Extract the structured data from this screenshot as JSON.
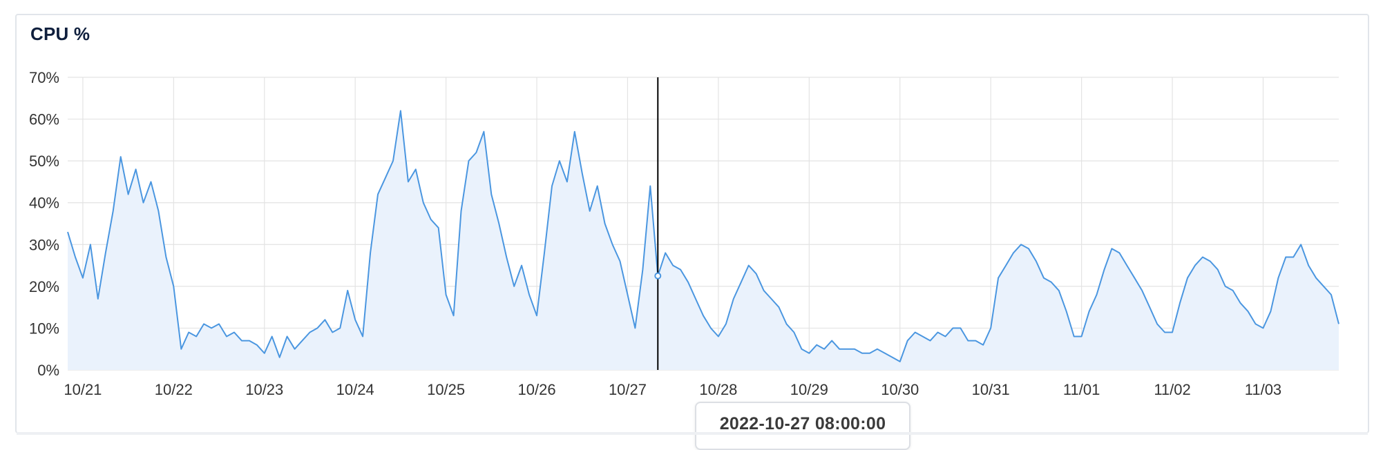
{
  "panel": {
    "title": "CPU %"
  },
  "tooltip": {
    "timestamp": "2022-10-27 08:00:00"
  },
  "colors": {
    "line": "#4a96e0",
    "fill": "#eaf2fc",
    "grid": "#e3e3e3",
    "crosshair": "#000000",
    "tick_text": "#333333"
  },
  "chart_data": {
    "type": "area",
    "title": "CPU %",
    "xlabel": "",
    "ylabel": "",
    "ylim": [
      0,
      70
    ],
    "y_ticks": [
      0,
      10,
      20,
      30,
      40,
      50,
      60,
      70
    ],
    "y_tick_suffix": "%",
    "x_range": [
      "2022-10-20 20:00",
      "2022-11-03 20:00"
    ],
    "x_tick_labels": [
      "10/21",
      "10/22",
      "10/23",
      "10/24",
      "10/25",
      "10/26",
      "10/27",
      "10/28",
      "10/29",
      "10/30",
      "10/31",
      "11/01",
      "11/02",
      "11/03"
    ],
    "grid": true,
    "legend": "none",
    "cursor": {
      "x": "2022-10-27 08:00:00",
      "y": 22.5
    },
    "series": [
      {
        "x": [
          "10/20 20:00",
          "10/20 22:00",
          "10/21 00:00",
          "10/21 02:00",
          "10/21 04:00",
          "10/21 06:00",
          "10/21 08:00",
          "10/21 10:00",
          "10/21 12:00",
          "10/21 14:00",
          "10/21 16:00",
          "10/21 18:00",
          "10/21 20:00",
          "10/21 22:00",
          "10/22 00:00",
          "10/22 02:00",
          "10/22 04:00",
          "10/22 06:00",
          "10/22 08:00",
          "10/22 10:00",
          "10/22 12:00",
          "10/22 14:00",
          "10/22 16:00",
          "10/22 18:00",
          "10/22 20:00",
          "10/22 22:00",
          "10/23 00:00",
          "10/23 02:00",
          "10/23 04:00",
          "10/23 06:00",
          "10/23 08:00",
          "10/23 10:00",
          "10/23 12:00",
          "10/23 14:00",
          "10/23 16:00",
          "10/23 18:00",
          "10/23 20:00",
          "10/23 22:00",
          "10/24 00:00",
          "10/24 02:00",
          "10/24 04:00",
          "10/24 06:00",
          "10/24 08:00",
          "10/24 10:00",
          "10/24 12:00",
          "10/24 14:00",
          "10/24 16:00",
          "10/24 18:00",
          "10/24 20:00",
          "10/24 22:00",
          "10/25 00:00",
          "10/25 02:00",
          "10/25 04:00",
          "10/25 06:00",
          "10/25 08:00",
          "10/25 10:00",
          "10/25 12:00",
          "10/25 14:00",
          "10/25 16:00",
          "10/25 18:00",
          "10/25 20:00",
          "10/25 22:00",
          "10/26 00:00",
          "10/26 02:00",
          "10/26 04:00",
          "10/26 06:00",
          "10/26 08:00",
          "10/26 10:00",
          "10/26 12:00",
          "10/26 14:00",
          "10/26 16:00",
          "10/26 18:00",
          "10/26 20:00",
          "10/26 22:00",
          "10/27 00:00",
          "10/27 02:00",
          "10/27 04:00",
          "10/27 06:00",
          "10/27 08:00",
          "10/27 10:00",
          "10/27 12:00",
          "10/27 14:00",
          "10/27 16:00",
          "10/27 18:00",
          "10/27 20:00",
          "10/27 22:00",
          "10/28 00:00",
          "10/28 02:00",
          "10/28 04:00",
          "10/28 06:00",
          "10/28 08:00",
          "10/28 10:00",
          "10/28 12:00",
          "10/28 14:00",
          "10/28 16:00",
          "10/28 18:00",
          "10/28 20:00",
          "10/28 22:00",
          "10/29 00:00",
          "10/29 02:00",
          "10/29 04:00",
          "10/29 06:00",
          "10/29 08:00",
          "10/29 10:00",
          "10/29 12:00",
          "10/29 14:00",
          "10/29 16:00",
          "10/29 18:00",
          "10/29 20:00",
          "10/29 22:00",
          "10/30 00:00",
          "10/30 02:00",
          "10/30 04:00",
          "10/30 06:00",
          "10/30 08:00",
          "10/30 10:00",
          "10/30 12:00",
          "10/30 14:00",
          "10/30 16:00",
          "10/30 18:00",
          "10/30 20:00",
          "10/30 22:00",
          "10/31 00:00",
          "10/31 02:00",
          "10/31 04:00",
          "10/31 06:00",
          "10/31 08:00",
          "10/31 10:00",
          "10/31 12:00",
          "10/31 14:00",
          "10/31 16:00",
          "10/31 18:00",
          "10/31 20:00",
          "10/31 22:00",
          "11/01 00:00",
          "11/01 02:00",
          "11/01 04:00",
          "11/01 06:00",
          "11/01 08:00",
          "11/01 10:00",
          "11/01 12:00",
          "11/01 14:00",
          "11/01 16:00",
          "11/01 18:00",
          "11/01 20:00",
          "11/01 22:00",
          "11/02 00:00",
          "11/02 02:00",
          "11/02 04:00",
          "11/02 06:00",
          "11/02 08:00",
          "11/02 10:00",
          "11/02 12:00",
          "11/02 14:00",
          "11/02 16:00",
          "11/02 18:00",
          "11/02 20:00",
          "11/02 22:00",
          "11/03 00:00",
          "11/03 02:00",
          "11/03 04:00",
          "11/03 06:00",
          "11/03 08:00",
          "11/03 10:00",
          "11/03 12:00",
          "11/03 14:00",
          "11/03 16:00",
          "11/03 18:00",
          "11/03 20:00"
        ],
        "values": [
          33,
          27,
          22,
          30,
          17,
          28,
          38,
          51,
          42,
          48,
          40,
          45,
          38,
          27,
          20,
          5,
          9,
          8,
          11,
          10,
          11,
          8,
          9,
          7,
          7,
          6,
          4,
          8,
          3,
          8,
          5,
          7,
          9,
          10,
          12,
          9,
          10,
          19,
          12,
          8,
          28,
          42,
          46,
          50,
          62,
          45,
          48,
          40,
          36,
          34,
          18,
          13,
          38,
          50,
          52,
          57,
          42,
          35,
          27,
          20,
          25,
          18,
          13,
          28,
          44,
          50,
          45,
          57,
          47,
          38,
          44,
          35,
          30,
          26,
          18,
          10,
          24,
          44,
          22.5,
          28,
          25,
          24,
          21,
          17,
          13,
          10,
          8,
          11,
          17,
          21,
          25,
          23,
          19,
          17,
          15,
          11,
          9,
          5,
          4,
          6,
          5,
          7,
          5,
          5,
          5,
          4,
          4,
          5,
          4,
          3,
          2,
          7,
          9,
          8,
          7,
          9,
          8,
          10,
          10,
          7,
          7,
          6,
          10,
          22,
          25,
          28,
          30,
          29,
          26,
          22,
          21,
          19,
          14,
          8,
          8,
          14,
          18,
          24,
          29,
          28,
          25,
          22,
          19,
          15,
          11,
          9,
          9,
          16,
          22,
          25,
          27,
          26,
          24,
          20,
          19,
          16,
          14,
          11,
          10,
          14,
          22,
          27,
          27,
          30,
          25,
          22,
          20,
          18,
          11
        ]
      }
    ]
  }
}
